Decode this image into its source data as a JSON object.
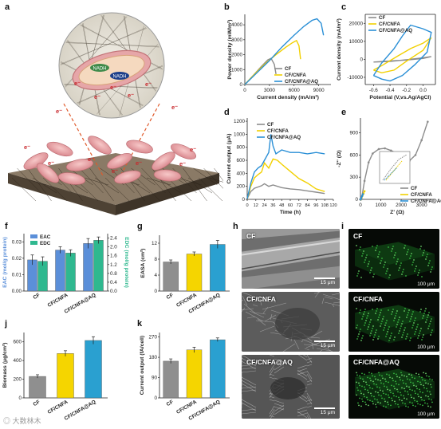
{
  "panels": {
    "a": "a",
    "b": "b",
    "c": "c",
    "d": "d",
    "e": "e",
    "f": "f",
    "g": "g",
    "h": "h",
    "i": "i",
    "j": "j",
    "k": "k"
  },
  "illustration": {
    "nadh_top": "NADH",
    "nadh_bottom": "NADH",
    "electron": "e⁻"
  },
  "colors": {
    "CF": "#8c8c8c",
    "CF_CNFA": "#f2d000",
    "CF_CNFA_AQ": "#2a8fd6",
    "EAC": "#5b8fd9",
    "EDC": "#2fb88f",
    "bar_gray": "#8f8f8f",
    "bar_yellow": "#f5d500",
    "bar_blue": "#2aa0d0"
  },
  "legend": {
    "cf": "CF",
    "cnfa": "CF/CNFA",
    "aq": "CF/CNFA@AQ"
  },
  "chart_data": [
    {
      "panel": "b",
      "type": "line",
      "xlabel": "Current density (mA/m²)",
      "ylabel": "Power density (mW/m²)",
      "xticks": [
        "0",
        "3000",
        "6000",
        "9000"
      ],
      "yticks": [
        "0",
        "1000",
        "2000",
        "3000",
        "4000"
      ],
      "xlim": [
        0,
        10500
      ],
      "ylim": [
        0,
        4700
      ],
      "series": [
        {
          "name": "CF",
          "x": [
            0,
            1000,
            2000,
            2800,
            3200,
            3600,
            3800
          ],
          "y": [
            0,
            600,
            1200,
            1650,
            1750,
            1350,
            700
          ]
        },
        {
          "name": "CF/CNFA",
          "x": [
            0,
            1200,
            2500,
            3800,
            5000,
            5800,
            6300,
            6600,
            6800
          ],
          "y": [
            0,
            700,
            1400,
            2000,
            2500,
            2800,
            2950,
            2600,
            1700
          ]
        },
        {
          "name": "CF/CNFA@AQ",
          "x": [
            0,
            1500,
            3000,
            4500,
            6000,
            7200,
            8200,
            8800,
            9300,
            9600
          ],
          "y": [
            0,
            800,
            1600,
            2500,
            3300,
            3900,
            4300,
            4400,
            4100,
            3300
          ]
        }
      ]
    },
    {
      "panel": "c",
      "type": "line",
      "xlabel": "Potential (V,vs.Ag/AgCl)",
      "ylabel": "Current density (mA/m²)",
      "xticks": [
        "-0.6",
        "-0.4",
        "-0.2",
        "0.0"
      ],
      "yticks": [
        "-10000",
        "0",
        "10000",
        "20000"
      ],
      "xlim": [
        -0.7,
        0.15
      ],
      "ylim": [
        -14000,
        25000
      ],
      "series": [
        {
          "name": "CF",
          "x": [
            -0.6,
            -0.4,
            -0.2,
            0.0,
            0.1,
            0.0,
            -0.2,
            -0.4,
            -0.6
          ],
          "y": [
            -1500,
            -900,
            -400,
            500,
            1500,
            900,
            -200,
            -1200,
            -1500
          ]
        },
        {
          "name": "CF/CNFA",
          "x": [
            -0.6,
            -0.5,
            -0.3,
            -0.15,
            0.0,
            0.1,
            0.0,
            -0.2,
            -0.35,
            -0.5,
            -0.6
          ],
          "y": [
            -6000,
            -3500,
            2000,
            6000,
            9000,
            12000,
            5000,
            -1000,
            -6000,
            -7500,
            -6000
          ]
        },
        {
          "name": "CF/CNFA@AQ",
          "x": [
            -0.6,
            -0.5,
            -0.35,
            -0.25,
            -0.15,
            0.0,
            0.1,
            0.05,
            -0.1,
            -0.25,
            -0.4,
            -0.5,
            -0.6
          ],
          "y": [
            -9000,
            -2000,
            6000,
            13000,
            19000,
            17000,
            15000,
            4000,
            -3000,
            -9000,
            -12000,
            -11000,
            -9000
          ]
        }
      ]
    },
    {
      "panel": "d",
      "type": "line",
      "xlabel": "Time (h)",
      "ylabel": "Current output (μA)",
      "xticks": [
        "0",
        "12",
        "24",
        "36",
        "48",
        "60",
        "72",
        "84",
        "96",
        "108",
        "120"
      ],
      "yticks": [
        "0",
        "200",
        "400",
        "600",
        "800",
        "1000",
        "1200"
      ],
      "xlim": [
        0,
        120
      ],
      "ylim": [
        0,
        1250
      ],
      "series": [
        {
          "name": "CF",
          "x": [
            0,
            5,
            10,
            15,
            20,
            24,
            30,
            36,
            48,
            60,
            72,
            84,
            96,
            108
          ],
          "y": [
            10,
            120,
            170,
            190,
            210,
            240,
            200,
            220,
            180,
            160,
            150,
            130,
            110,
            90
          ]
        },
        {
          "name": "CF/CNFA",
          "x": [
            0,
            5,
            10,
            15,
            20,
            24,
            30,
            36,
            42,
            48,
            60,
            72,
            84,
            96,
            108
          ],
          "y": [
            10,
            200,
            330,
            380,
            420,
            560,
            480,
            620,
            600,
            540,
            430,
            320,
            250,
            160,
            120
          ]
        },
        {
          "name": "CF/CNFA@AQ",
          "x": [
            0,
            5,
            10,
            15,
            20,
            24,
            30,
            33,
            36,
            40,
            48,
            60,
            72,
            84,
            96,
            108
          ],
          "y": [
            10,
            250,
            420,
            480,
            520,
            600,
            720,
            1000,
            820,
            700,
            760,
            720,
            720,
            700,
            720,
            700
          ]
        }
      ]
    },
    {
      "panel": "e",
      "type": "line",
      "xlabel": "Z' (Ω)",
      "ylabel": "-Z'' (Ω)",
      "xticks": [
        "0",
        "1000",
        "2000",
        "3000"
      ],
      "yticks": [
        "0",
        "300",
        "600",
        "900"
      ],
      "xlim": [
        0,
        3600
      ],
      "ylim": [
        0,
        1100
      ],
      "series": [
        {
          "name": "CF",
          "x": [
            50,
            200,
            400,
            600,
            900,
            1200,
            1500,
            1800,
            2100,
            2400,
            2700,
            3000,
            3300
          ],
          "y": [
            0,
            250,
            500,
            620,
            680,
            690,
            660,
            620,
            560,
            520,
            600,
            800,
            1050
          ]
        },
        {
          "name": "CF/CNFA",
          "x": [
            20,
            60,
            100,
            150,
            200
          ],
          "y": [
            0,
            25,
            50,
            80,
            110
          ]
        },
        {
          "name": "CF/CNFA@AQ",
          "x": [
            10,
            40,
            80,
            120
          ],
          "y": [
            0,
            20,
            45,
            70
          ]
        }
      ]
    },
    {
      "panel": "f",
      "type": "bar",
      "categories": [
        "CF",
        "CF/CNFA",
        "CF/CNFA@AQ"
      ],
      "ylabel": "EAC (mol/g protein)",
      "ylabel2": "EDC (mol/g protein)",
      "yticks": [
        "0.00",
        "0.01",
        "0.02",
        "0.03"
      ],
      "yticks2": [
        "0.0",
        "0.4",
        "0.8",
        "1.2",
        "1.6",
        "2.0",
        "2.4"
      ],
      "ylim": [
        0,
        0.035
      ],
      "ylim2": [
        0,
        2.6
      ],
      "series": [
        {
          "name": "EAC",
          "values": [
            0.019,
            0.025,
            0.029
          ],
          "errors": [
            0.003,
            0.002,
            0.003
          ]
        },
        {
          "name": "EDC",
          "values": [
            1.35,
            1.72,
            2.3
          ],
          "errors": [
            0.2,
            0.15,
            0.15
          ]
        }
      ]
    },
    {
      "panel": "g",
      "type": "bar",
      "categories": [
        "CF",
        "CF/CNFA",
        "CF/CNFA@AQ"
      ],
      "ylabel": "EASA (cm²)",
      "yticks": [
        "0",
        "4",
        "8",
        "12"
      ],
      "ylim": [
        0,
        14
      ],
      "series": [
        {
          "values": [
            7.3,
            9.3,
            11.7
          ],
          "errors": [
            0.5,
            0.5,
            1.0
          ]
        }
      ]
    },
    {
      "panel": "j",
      "type": "bar",
      "categories": [
        "CF",
        "CF/CNFA",
        "CF/CNFA@AQ"
      ],
      "ylabel": "Biomass (μg/cm²)",
      "yticks": [
        "0",
        "200",
        "400",
        "600"
      ],
      "ylim": [
        0,
        700
      ],
      "series": [
        {
          "values": [
            230,
            475,
            615
          ],
          "errors": [
            18,
            30,
            40
          ]
        }
      ]
    },
    {
      "panel": "k",
      "type": "bar",
      "categories": [
        "CF",
        "CF/CNFA",
        "CF/CNFA@AQ"
      ],
      "ylabel": "Current output (fA/cell)",
      "yticks": [
        "0",
        "90",
        "180",
        "270"
      ],
      "ylim": [
        0,
        290
      ],
      "series": [
        {
          "values": [
            163,
            213,
            258
          ],
          "errors": [
            10,
            12,
            8
          ]
        }
      ]
    }
  ],
  "sem": [
    {
      "label": "CF",
      "scale": "15 μm"
    },
    {
      "label": "CF/CNFA",
      "scale": "15 μm"
    },
    {
      "label": "CF/CNFA@AQ",
      "scale": "15 μm"
    }
  ],
  "confocal": [
    {
      "label": "CF",
      "scale": "100 μm"
    },
    {
      "label": "CF/CNFA",
      "scale": "100 μm"
    },
    {
      "label": "CF/CNFA@AQ",
      "scale": "100 μm"
    }
  ],
  "watermark": "◎ 大数林木"
}
